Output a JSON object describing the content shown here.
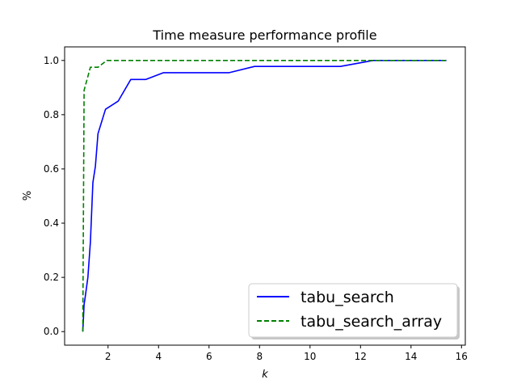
{
  "chart_data": {
    "type": "line",
    "title": "Time measure performance profile",
    "xlabel": "k",
    "ylabel": "%",
    "xlim": [
      0.28,
      16.15
    ],
    "ylim": [
      -0.05,
      1.05
    ],
    "xticks": [
      "2",
      "4",
      "6",
      "8",
      "10",
      "12",
      "14",
      "16"
    ],
    "yticks": [
      "0.0",
      "0.2",
      "0.4",
      "0.6",
      "0.8",
      "1.0"
    ],
    "grid": false,
    "legend_position": "lower-right",
    "series": [
      {
        "name": "tabu_search",
        "color": "#0000ff",
        "style": "solid",
        "x": [
          1.0,
          1.05,
          1.1,
          1.2,
          1.3,
          1.4,
          1.5,
          1.6,
          1.9,
          2.4,
          2.9,
          3.5,
          4.2,
          5.0,
          6.8,
          7.8,
          9.0,
          11.2,
          12.5,
          15.4
        ],
        "y": [
          0.0,
          0.1,
          0.13,
          0.2,
          0.33,
          0.55,
          0.61,
          0.73,
          0.82,
          0.85,
          0.93,
          0.93,
          0.955,
          0.955,
          0.955,
          0.978,
          0.978,
          0.978,
          1.0,
          1.0
        ]
      },
      {
        "name": "tabu_search_array",
        "color": "#008000",
        "style": "dashed",
        "x": [
          1.0,
          1.05,
          1.3,
          1.6,
          1.95,
          12.0,
          15.4
        ],
        "y": [
          0.0,
          0.89,
          0.975,
          0.975,
          1.0,
          1.0,
          1.0
        ]
      }
    ]
  }
}
